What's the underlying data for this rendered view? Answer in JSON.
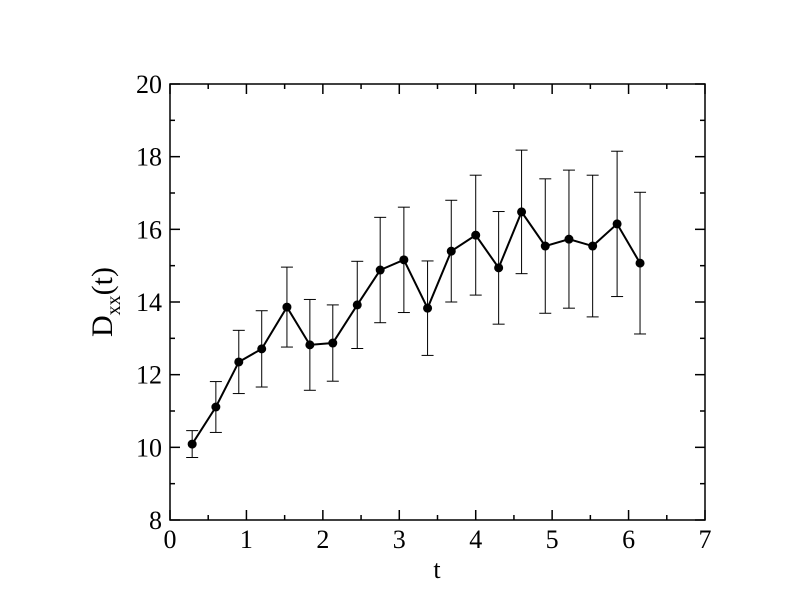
{
  "chart_data": {
    "type": "line",
    "xlabel": "t",
    "ylabel": {
      "main": "D",
      "sub": "xx",
      "tail": "(t)"
    },
    "xlim": [
      0,
      7
    ],
    "xticks": [
      0,
      1,
      2,
      3,
      4,
      5,
      6,
      7
    ],
    "ylim": [
      8,
      20
    ],
    "yticks": [
      8,
      10,
      12,
      14,
      16,
      18,
      20
    ],
    "series": [
      {
        "color": "#000000",
        "x": [
          0.29,
          0.6,
          0.9,
          1.2,
          1.53,
          1.83,
          2.13,
          2.45,
          2.75,
          3.06,
          3.37,
          3.68,
          4.0,
          4.3,
          4.6,
          4.91,
          5.22,
          5.53,
          5.85,
          6.15
        ],
        "values": [
          10.09,
          11.11,
          12.35,
          12.71,
          13.86,
          12.82,
          12.87,
          13.92,
          14.88,
          15.16,
          13.83,
          15.4,
          15.84,
          14.94,
          16.48,
          15.54,
          15.73,
          15.54,
          16.15,
          15.07
        ],
        "errors": [
          0.37,
          0.7,
          0.87,
          1.05,
          1.1,
          1.25,
          1.05,
          1.2,
          1.45,
          1.45,
          1.3,
          1.4,
          1.65,
          1.55,
          1.7,
          1.85,
          1.9,
          1.95,
          2.0,
          1.95
        ]
      }
    ]
  }
}
